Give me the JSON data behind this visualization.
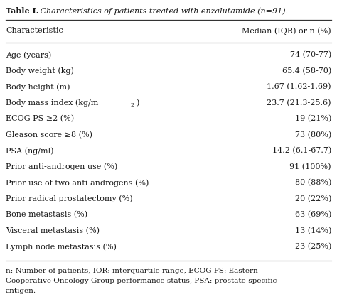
{
  "title_bold": "Table I.",
  "title_italic": " Characteristics of patients treated with enzalutamide (n=91).",
  "header_col1": "Characteristic",
  "header_col2": "Median (IQR) or n (%)",
  "rows": [
    [
      "Age (years)",
      "74 (70-77)",
      false
    ],
    [
      "Body weight (kg)",
      "65.4 (58-70)",
      false
    ],
    [
      "Body height (m)",
      "1.67 (1.62-1.69)",
      false
    ],
    [
      "Body mass index (kg/m",
      "23.7 (21.3-25.6)",
      true
    ],
    [
      "ECOG PS ≥2 (%)",
      "19 (21%)",
      false
    ],
    [
      "Gleason score ≥8 (%)",
      "73 (80%)",
      false
    ],
    [
      "PSA (ng/ml)",
      "14.2 (6.1-67.7)",
      false
    ],
    [
      "Prior anti-androgen use (%)",
      "91 (100%)",
      false
    ],
    [
      "Prior use of two anti-androgens (%)",
      "80 (88%)",
      false
    ],
    [
      "Prior radical prostatectomy (%)",
      "20 (22%)",
      false
    ],
    [
      "Bone metastasis (%)",
      "63 (69%)",
      false
    ],
    [
      "Visceral metastasis (%)",
      "13 (14%)",
      false
    ],
    [
      "Lymph node metastasis (%)",
      "23 (25%)",
      false
    ]
  ],
  "footnote_lines": [
    "n: Number of patients, IQR: interquartile range, ECOG PS: Eastern",
    "Cooperative Oncology Group performance status, PSA: prostate-specific",
    "antigen."
  ],
  "bg_color": "#ffffff",
  "text_color": "#1a1a1a",
  "line_color": "#333333",
  "figsize": [
    4.74,
    4.28
  ],
  "dpi": 100,
  "title_fs": 8.0,
  "header_fs": 8.0,
  "row_fs": 8.0,
  "footnote_fs": 7.5
}
